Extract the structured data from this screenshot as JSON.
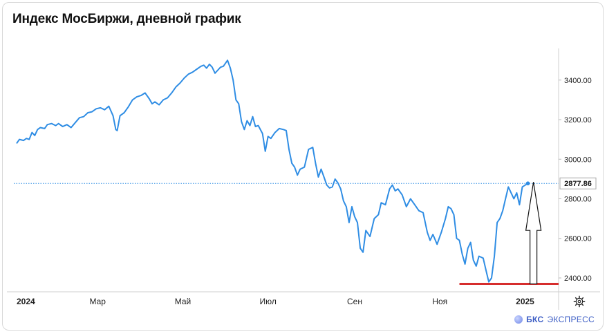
{
  "title": "Индекс МосБиржи, дневной график",
  "brand": {
    "name_bold": "БКС",
    "name": "ЭКСПРЕСС"
  },
  "colors": {
    "line": "#2f8de4",
    "support": "#d62d2d",
    "arrow": "#111111",
    "grid": "#e8e8e8"
  },
  "current_price_label": "2877.86",
  "icons": {
    "settings": "gear-icon",
    "brand": "bks-logo-icon"
  },
  "chart_data": {
    "type": "line",
    "title": "Индекс МосБиржи, дневной график",
    "y_axis": {
      "position": "right",
      "ticks": [
        2400,
        2600,
        2800,
        3000,
        3200,
        3400
      ],
      "tick_labels": [
        "2400.00",
        "2600.00",
        "2800.00",
        "3000.00",
        "3200.00",
        "3400.00"
      ],
      "range": [
        2330,
        3560
      ]
    },
    "x_axis": {
      "range": [
        "2024-01-01",
        "2025-01-25"
      ],
      "ticks": [
        {
          "date": "2024-01-01",
          "label": "2024",
          "bold": true
        },
        {
          "date": "2024-03-01",
          "label": "Мар",
          "bold": false
        },
        {
          "date": "2024-05-01",
          "label": "Май",
          "bold": false
        },
        {
          "date": "2024-07-01",
          "label": "Июл",
          "bold": false
        },
        {
          "date": "2024-09-01",
          "label": "Сен",
          "bold": false
        },
        {
          "date": "2024-11-01",
          "label": "Ноя",
          "bold": false
        },
        {
          "date": "2025-01-01",
          "label": "2025",
          "bold": true
        }
      ]
    },
    "series": [
      {
        "values": [
          [
            "2024-01-03",
            3080
          ],
          [
            "2024-01-05",
            3100
          ],
          [
            "2024-01-08",
            3095
          ],
          [
            "2024-01-10",
            3105
          ],
          [
            "2024-01-12",
            3100
          ],
          [
            "2024-01-14",
            3135
          ],
          [
            "2024-01-16",
            3120
          ],
          [
            "2024-01-18",
            3150
          ],
          [
            "2024-01-20",
            3160
          ],
          [
            "2024-01-23",
            3155
          ],
          [
            "2024-01-25",
            3175
          ],
          [
            "2024-01-28",
            3180
          ],
          [
            "2024-01-31",
            3170
          ],
          [
            "2024-02-02",
            3180
          ],
          [
            "2024-02-05",
            3165
          ],
          [
            "2024-02-08",
            3175
          ],
          [
            "2024-02-11",
            3160
          ],
          [
            "2024-02-14",
            3185
          ],
          [
            "2024-02-17",
            3210
          ],
          [
            "2024-02-20",
            3215
          ],
          [
            "2024-02-23",
            3235
          ],
          [
            "2024-02-26",
            3240
          ],
          [
            "2024-02-29",
            3255
          ],
          [
            "2024-03-03",
            3260
          ],
          [
            "2024-03-06",
            3250
          ],
          [
            "2024-03-09",
            3268
          ],
          [
            "2024-03-12",
            3220
          ],
          [
            "2024-03-14",
            3150
          ],
          [
            "2024-03-15",
            3145
          ],
          [
            "2024-03-17",
            3220
          ],
          [
            "2024-03-20",
            3235
          ],
          [
            "2024-03-23",
            3265
          ],
          [
            "2024-03-26",
            3300
          ],
          [
            "2024-03-29",
            3315
          ],
          [
            "2024-04-01",
            3322
          ],
          [
            "2024-04-04",
            3335
          ],
          [
            "2024-04-07",
            3305
          ],
          [
            "2024-04-09",
            3280
          ],
          [
            "2024-04-11",
            3290
          ],
          [
            "2024-04-14",
            3275
          ],
          [
            "2024-04-17",
            3300
          ],
          [
            "2024-04-20",
            3310
          ],
          [
            "2024-04-23",
            3335
          ],
          [
            "2024-04-26",
            3365
          ],
          [
            "2024-04-29",
            3385
          ],
          [
            "2024-05-02",
            3410
          ],
          [
            "2024-05-05",
            3430
          ],
          [
            "2024-05-08",
            3440
          ],
          [
            "2024-05-11",
            3455
          ],
          [
            "2024-05-14",
            3470
          ],
          [
            "2024-05-16",
            3475
          ],
          [
            "2024-05-18",
            3460
          ],
          [
            "2024-05-20",
            3480
          ],
          [
            "2024-05-22",
            3465
          ],
          [
            "2024-05-24",
            3435
          ],
          [
            "2024-05-26",
            3450
          ],
          [
            "2024-05-28",
            3465
          ],
          [
            "2024-05-30",
            3470
          ],
          [
            "2024-06-02",
            3500
          ],
          [
            "2024-06-04",
            3460
          ],
          [
            "2024-06-06",
            3400
          ],
          [
            "2024-06-08",
            3300
          ],
          [
            "2024-06-10",
            3280
          ],
          [
            "2024-06-12",
            3190
          ],
          [
            "2024-06-14",
            3150
          ],
          [
            "2024-06-16",
            3195
          ],
          [
            "2024-06-18",
            3170
          ],
          [
            "2024-06-20",
            3215
          ],
          [
            "2024-06-22",
            3165
          ],
          [
            "2024-06-24",
            3170
          ],
          [
            "2024-06-27",
            3130
          ],
          [
            "2024-06-29",
            3040
          ],
          [
            "2024-07-01",
            3115
          ],
          [
            "2024-07-03",
            3105
          ],
          [
            "2024-07-06",
            3135
          ],
          [
            "2024-07-09",
            3155
          ],
          [
            "2024-07-12",
            3150
          ],
          [
            "2024-07-14",
            3145
          ],
          [
            "2024-07-16",
            3050
          ],
          [
            "2024-07-18",
            2980
          ],
          [
            "2024-07-20",
            2960
          ],
          [
            "2024-07-22",
            2920
          ],
          [
            "2024-07-24",
            2950
          ],
          [
            "2024-07-27",
            2960
          ],
          [
            "2024-07-30",
            3050
          ],
          [
            "2024-08-02",
            3060
          ],
          [
            "2024-08-04",
            2980
          ],
          [
            "2024-08-06",
            2910
          ],
          [
            "2024-08-08",
            2950
          ],
          [
            "2024-08-10",
            2910
          ],
          [
            "2024-08-12",
            2870
          ],
          [
            "2024-08-14",
            2855
          ],
          [
            "2024-08-16",
            2860
          ],
          [
            "2024-08-18",
            2900
          ],
          [
            "2024-08-20",
            2880
          ],
          [
            "2024-08-22",
            2850
          ],
          [
            "2024-08-24",
            2790
          ],
          [
            "2024-08-26",
            2760
          ],
          [
            "2024-08-28",
            2680
          ],
          [
            "2024-08-30",
            2760
          ],
          [
            "2024-09-01",
            2710
          ],
          [
            "2024-09-03",
            2680
          ],
          [
            "2024-09-05",
            2550
          ],
          [
            "2024-09-07",
            2530
          ],
          [
            "2024-09-09",
            2640
          ],
          [
            "2024-09-12",
            2610
          ],
          [
            "2024-09-15",
            2700
          ],
          [
            "2024-09-18",
            2720
          ],
          [
            "2024-09-20",
            2780
          ],
          [
            "2024-09-23",
            2770
          ],
          [
            "2024-09-26",
            2850
          ],
          [
            "2024-09-28",
            2870
          ],
          [
            "2024-09-30",
            2840
          ],
          [
            "2024-10-02",
            2850
          ],
          [
            "2024-10-05",
            2820
          ],
          [
            "2024-10-08",
            2760
          ],
          [
            "2024-10-11",
            2800
          ],
          [
            "2024-10-14",
            2770
          ],
          [
            "2024-10-17",
            2740
          ],
          [
            "2024-10-20",
            2730
          ],
          [
            "2024-10-23",
            2630
          ],
          [
            "2024-10-25",
            2590
          ],
          [
            "2024-10-27",
            2620
          ],
          [
            "2024-10-30",
            2570
          ],
          [
            "2024-11-02",
            2630
          ],
          [
            "2024-11-05",
            2700
          ],
          [
            "2024-11-07",
            2760
          ],
          [
            "2024-11-09",
            2750
          ],
          [
            "2024-11-11",
            2720
          ],
          [
            "2024-11-13",
            2600
          ],
          [
            "2024-11-15",
            2590
          ],
          [
            "2024-11-17",
            2520
          ],
          [
            "2024-11-19",
            2470
          ],
          [
            "2024-11-21",
            2550
          ],
          [
            "2024-11-23",
            2580
          ],
          [
            "2024-11-25",
            2490
          ],
          [
            "2024-11-27",
            2460
          ],
          [
            "2024-11-29",
            2510
          ],
          [
            "2024-12-02",
            2500
          ],
          [
            "2024-12-04",
            2440
          ],
          [
            "2024-12-06",
            2380
          ],
          [
            "2024-12-08",
            2400
          ],
          [
            "2024-12-10",
            2510
          ],
          [
            "2024-12-12",
            2680
          ],
          [
            "2024-12-14",
            2700
          ],
          [
            "2024-12-16",
            2740
          ],
          [
            "2024-12-18",
            2800
          ],
          [
            "2024-12-20",
            2860
          ],
          [
            "2024-12-22",
            2830
          ],
          [
            "2024-12-24",
            2800
          ],
          [
            "2024-12-26",
            2830
          ],
          [
            "2024-12-28",
            2770
          ],
          [
            "2024-12-30",
            2860
          ],
          [
            "2025-01-03",
            2877.86
          ]
        ]
      }
    ],
    "current_value": 2877.86,
    "annotations": {
      "support_line_value": 2370,
      "support_line_range": [
        "2024-11-15",
        "2025-01-25"
      ],
      "up_arrow": {
        "date": "2025-01-07",
        "from": 2370,
        "to": 2885
      }
    },
    "grid": false,
    "legend": "none"
  }
}
